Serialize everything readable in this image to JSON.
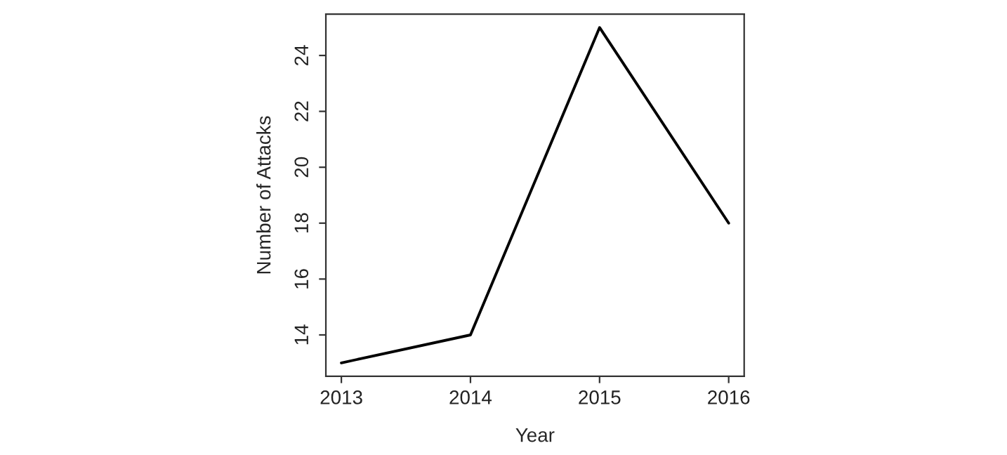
{
  "chart_data": {
    "type": "line",
    "xlabel": "Year",
    "ylabel": "Number of Attacks",
    "x": [
      2013,
      2014,
      2015,
      2016
    ],
    "series": [
      {
        "color": "#000000",
        "values": [
          13,
          14,
          25,
          18
        ]
      }
    ],
    "xlim": [
      2012.88,
      2016.12
    ],
    "xticks": [
      2013,
      2014,
      2015,
      2016
    ],
    "ylim": [
      12.52,
      25.48
    ],
    "yticks": [
      14,
      16,
      18,
      20,
      22,
      24
    ],
    "grid": false,
    "marker": "none",
    "line_style": "solid"
  }
}
